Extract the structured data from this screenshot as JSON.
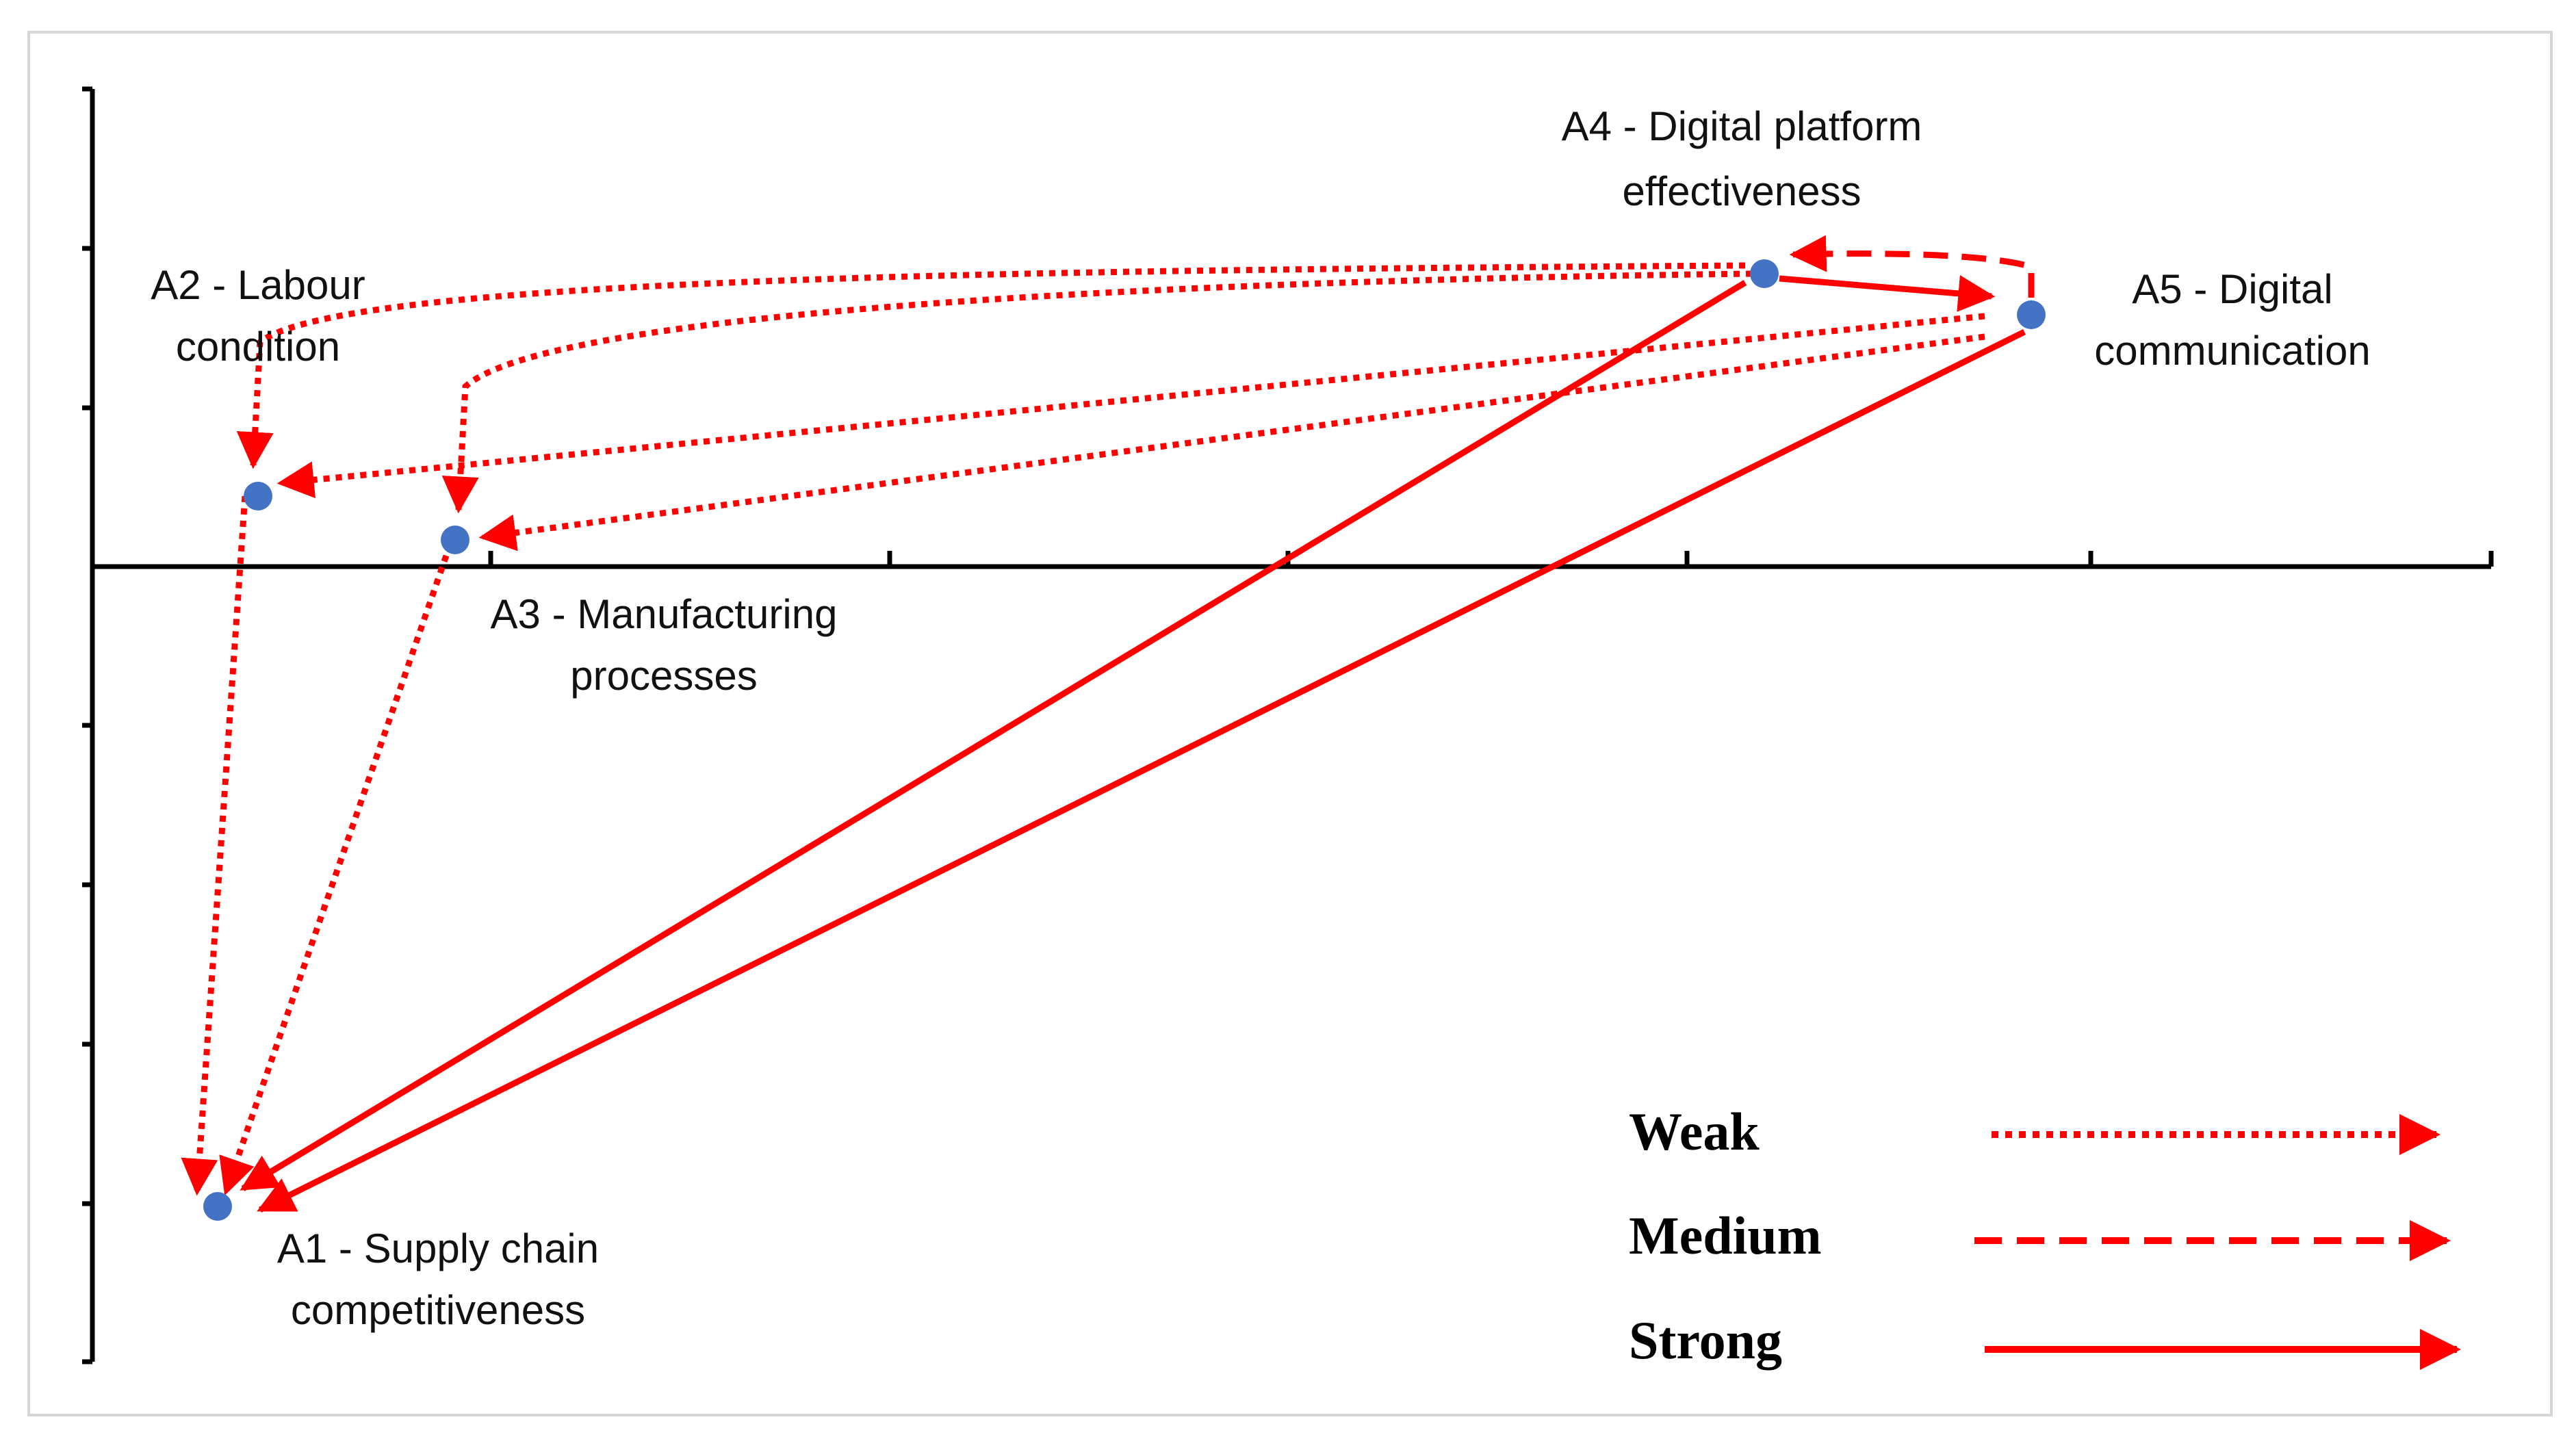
{
  "colors": {
    "arrow": "#ff0000",
    "node": "#4472c4",
    "axis": "#000000",
    "frame": "#d6d6d6"
  },
  "nodes": {
    "a1": {
      "line1": "A1 - Supply chain",
      "line2": "competitiveness"
    },
    "a2": {
      "line1": "A2 - Labour",
      "line2": "condition"
    },
    "a3": {
      "line1": "A3 - Manufacturing",
      "line2": "processes"
    },
    "a4": {
      "line1": "A4 - Digital platform",
      "line2": "effectiveness"
    },
    "a5": {
      "line1": "A5 - Digital",
      "line2": "communication"
    }
  },
  "edges": [
    {
      "from": "A4",
      "to": "A2",
      "strength": "Weak"
    },
    {
      "from": "A4",
      "to": "A3",
      "strength": "Weak"
    },
    {
      "from": "A5",
      "to": "A2",
      "strength": "Weak"
    },
    {
      "from": "A5",
      "to": "A3",
      "strength": "Weak"
    },
    {
      "from": "A2",
      "to": "A1",
      "strength": "Weak"
    },
    {
      "from": "A3",
      "to": "A1",
      "strength": "Weak"
    },
    {
      "from": "A5",
      "to": "A4",
      "strength": "Medium"
    },
    {
      "from": "A4",
      "to": "A5",
      "strength": "Strong"
    },
    {
      "from": "A4",
      "to": "A1",
      "strength": "Strong"
    },
    {
      "from": "A5",
      "to": "A1",
      "strength": "Strong"
    }
  ],
  "legend": {
    "weak": "Weak",
    "medium": "Medium",
    "strong": "Strong"
  }
}
